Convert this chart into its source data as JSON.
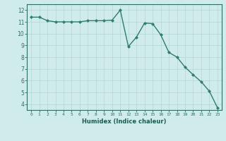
{
  "x": [
    0,
    1,
    2,
    3,
    4,
    5,
    6,
    7,
    8,
    9,
    10,
    11,
    12,
    13,
    14,
    15,
    16,
    17,
    18,
    19,
    20,
    21,
    22,
    23
  ],
  "y": [
    11.4,
    11.4,
    11.1,
    11.0,
    11.0,
    11.0,
    11.0,
    11.1,
    11.1,
    11.1,
    11.15,
    12.0,
    8.9,
    9.7,
    10.9,
    10.85,
    9.9,
    8.4,
    8.0,
    7.15,
    6.5,
    5.9,
    5.1,
    3.7
  ],
  "xlabel": "Humidex (Indice chaleur)",
  "ylim": [
    3.5,
    12.5
  ],
  "xlim": [
    -0.5,
    23.5
  ],
  "line_color": "#2e7d6e",
  "marker": "D",
  "marker_size": 2.0,
  "bg_color": "#cfecea",
  "grid_color": "#b8d9d6",
  "tick_color": "#2e6e60",
  "label_color": "#1a5c50",
  "yticks": [
    4,
    5,
    6,
    7,
    8,
    9,
    10,
    11,
    12
  ],
  "xticks": [
    0,
    1,
    2,
    3,
    4,
    5,
    6,
    7,
    8,
    9,
    10,
    11,
    12,
    13,
    14,
    15,
    16,
    17,
    18,
    19,
    20,
    21,
    22,
    23
  ]
}
